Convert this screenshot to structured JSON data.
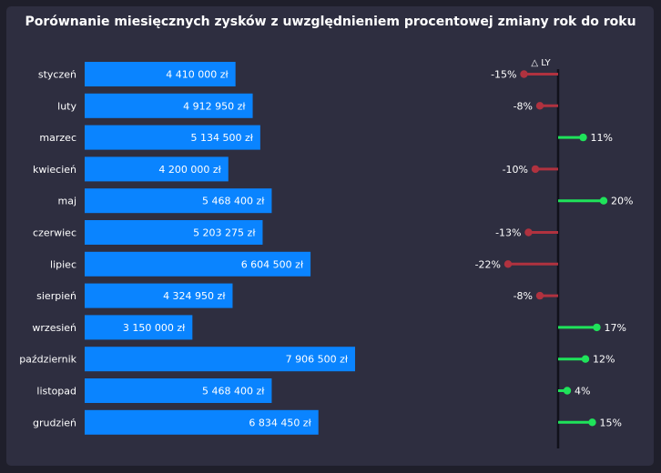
{
  "chart_data": {
    "type": "bar",
    "title": "Porównanie miesięcznych zysków z uwzględnieniem procentowej zmiany rok do roku",
    "categories": [
      "styczeń",
      "luty",
      "marzec",
      "kwiecień",
      "maj",
      "czerwiec",
      "lipiec",
      "sierpień",
      "wrzesień",
      "październik",
      "listopad",
      "grudzień"
    ],
    "series": [
      {
        "values": [
          4410000,
          4912950,
          5134500,
          4200000,
          5468400,
          5203275,
          6604500,
          4324950,
          3150000,
          7906500,
          5468400,
          6834450
        ],
        "labels": [
          "4 410 000 zł",
          "4 912 950 zł",
          "5 134 500 zł",
          "4 200 000 zł",
          "5 468 400 zł",
          "5 203 275 zł",
          "6 604 500 zł",
          "4 324 950 zł",
          "3 150 000 zł",
          "7 906 500 zł",
          "5 468 400 zł",
          "6 834 450 zł"
        ],
        "color": "#0a84ff"
      },
      {
        "name": "△ LY",
        "values": [
          -15,
          -8,
          11,
          -10,
          20,
          -13,
          -22,
          -8,
          17,
          12,
          4,
          15
        ],
        "labels": [
          "-15%",
          "-8%",
          "11%",
          "-10%",
          "20%",
          "-13%",
          "-22%",
          "-8%",
          "17%",
          "12%",
          "4%",
          "15%"
        ],
        "positive_color": "#1fe35a",
        "negative_color": "#b0323f"
      }
    ],
    "xlim": [
      0,
      9000000
    ]
  }
}
